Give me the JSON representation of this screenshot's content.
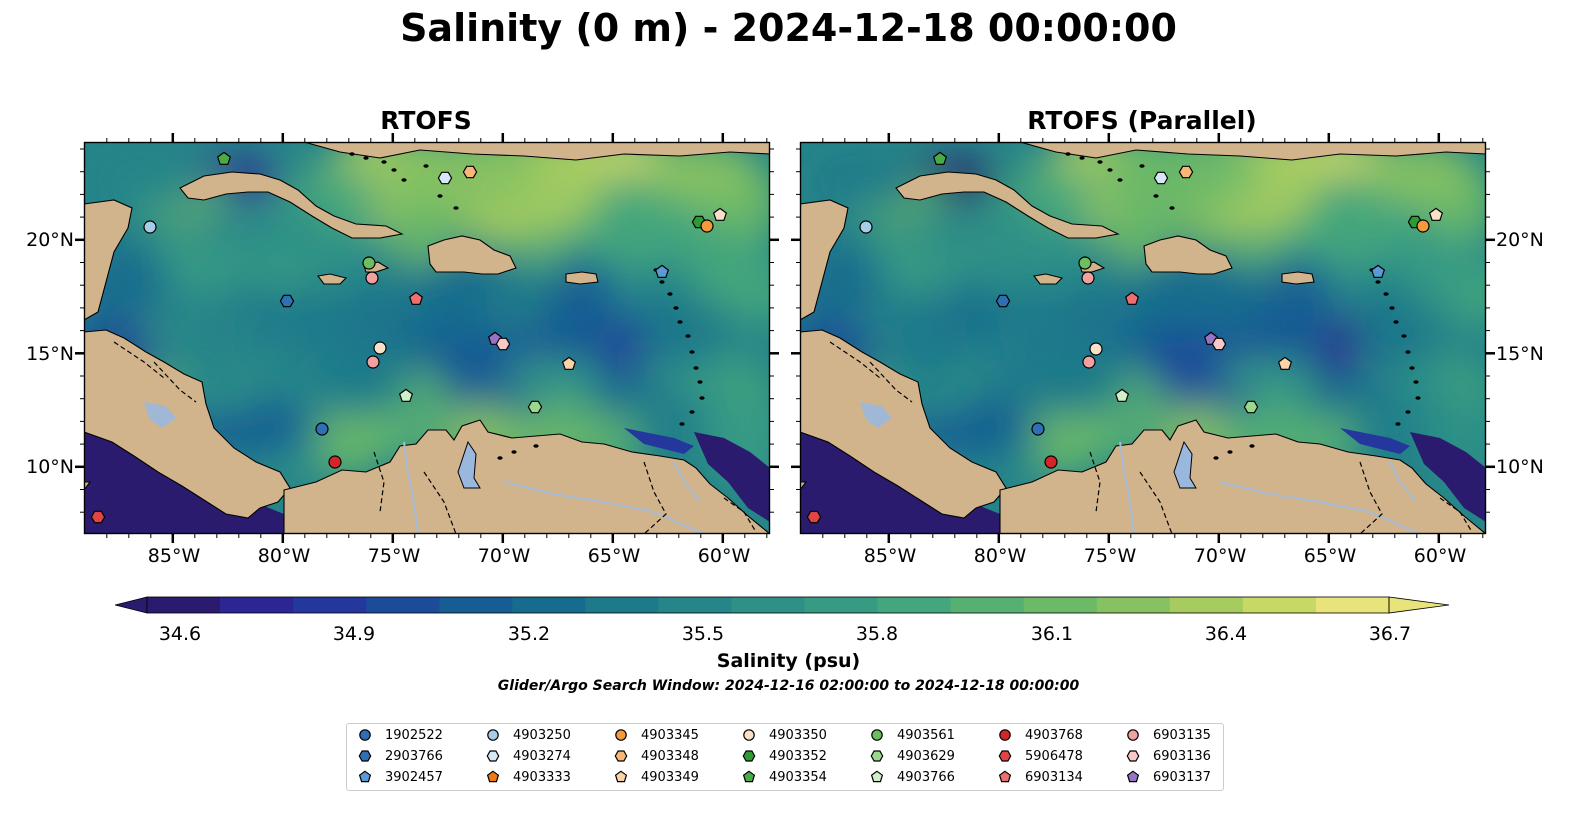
{
  "title": "Salinity (0 m) - 2024-12-18 00:00:00",
  "panels": [
    {
      "title": "RTOFS"
    },
    {
      "title": "RTOFS (Parallel)"
    }
  ],
  "axes": {
    "lat_labels": [
      "20°N",
      "15°N",
      "10°N"
    ],
    "lon_labels": [
      "85°W",
      "80°W",
      "75°W",
      "70°W",
      "65°W",
      "60°W"
    ]
  },
  "colorbar": {
    "label": "Salinity (psu)",
    "ticks": [
      "34.6",
      "34.9",
      "35.2",
      "35.5",
      "35.8",
      "36.1",
      "36.4",
      "36.7"
    ],
    "colors": [
      "#2b1b6e",
      "#2c2694",
      "#24379d",
      "#1b4b99",
      "#165d93",
      "#166c8e",
      "#1d7a8b",
      "#268589",
      "#2e9087",
      "#379b84",
      "#44a67c",
      "#56b072",
      "#6cb968",
      "#87c262",
      "#a6cc60",
      "#c7d865",
      "#e8e37a"
    ]
  },
  "search_window": "Glider/Argo Search Window: 2024-12-16 02:00:00 to 2024-12-18 00:00:00",
  "legend": [
    {
      "id": "1902522",
      "marker": "circle",
      "color": "#2f70b5"
    },
    {
      "id": "2903766",
      "marker": "hexagon",
      "color": "#2f70b5"
    },
    {
      "id": "3902457",
      "marker": "pentagon",
      "color": "#5a9bd5"
    },
    {
      "id": "4903250",
      "marker": "circle",
      "color": "#a6cce8"
    },
    {
      "id": "4903274",
      "marker": "hexagon",
      "color": "#d4e8f7"
    },
    {
      "id": "4903333",
      "marker": "pentagon",
      "color": "#f07b16"
    },
    {
      "id": "4903345",
      "marker": "circle",
      "color": "#f59a3c"
    },
    {
      "id": "4903348",
      "marker": "hexagon",
      "color": "#f8b776"
    },
    {
      "id": "4903349",
      "marker": "pentagon",
      "color": "#fbd3a8"
    },
    {
      "id": "4903350",
      "marker": "circle",
      "color": "#fbe0c8"
    },
    {
      "id": "4903352",
      "marker": "hexagon",
      "color": "#2e9a34"
    },
    {
      "id": "4903354",
      "marker": "pentagon",
      "color": "#4aab46"
    },
    {
      "id": "4903561",
      "marker": "circle",
      "color": "#6dbe5e"
    },
    {
      "id": "4903629",
      "marker": "hexagon",
      "color": "#9bd88c"
    },
    {
      "id": "4903766",
      "marker": "pentagon",
      "color": "#d0f0c8"
    },
    {
      "id": "4903768",
      "marker": "circle",
      "color": "#d3262b"
    },
    {
      "id": "5906478",
      "marker": "hexagon",
      "color": "#e04546"
    },
    {
      "id": "6903134",
      "marker": "pentagon",
      "color": "#ec7070"
    },
    {
      "id": "6903135",
      "marker": "circle",
      "color": "#f2a0a0"
    },
    {
      "id": "6903136",
      "marker": "hexagon",
      "color": "#f8c8c8"
    },
    {
      "id": "6903137",
      "marker": "pentagon",
      "color": "#9673c6"
    }
  ],
  "colors": {
    "land": "#d2b48c",
    "lakes": "#9ab8de",
    "rivers": "#a7bcd6",
    "deep_ocean": "#2b1b6e"
  }
}
